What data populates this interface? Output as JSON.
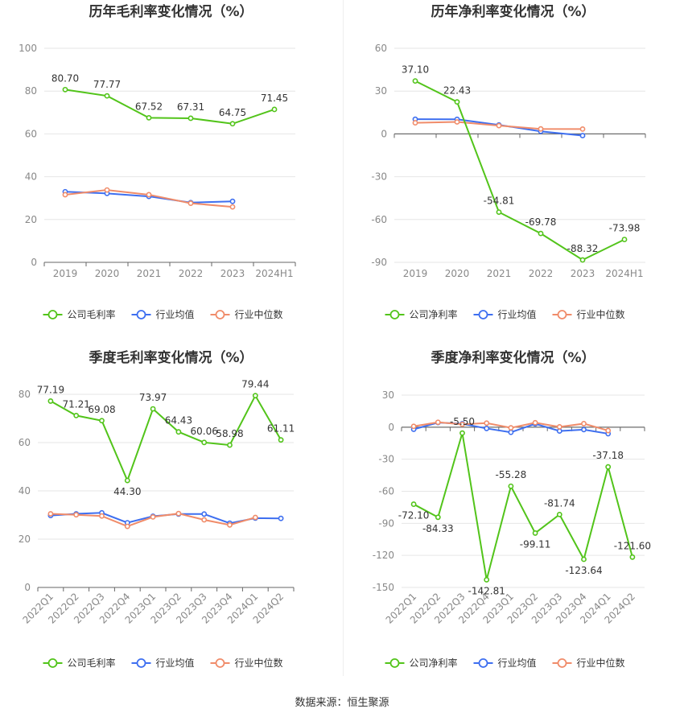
{
  "source_text": "数据来源：恒生聚源",
  "colors": {
    "company": "#52c41a",
    "industry_avg": "#3e6ff0",
    "industry_median": "#f08c6a"
  },
  "chart_data": [
    {
      "id": "annual_gross",
      "type": "line",
      "title": "历年毛利率变化情况（%）",
      "categories": [
        "2019",
        "2020",
        "2021",
        "2022",
        "2023",
        "2024H1"
      ],
      "ylim": [
        0,
        100
      ],
      "yticks": [
        0,
        20,
        40,
        60,
        80,
        100
      ],
      "xrotate": false,
      "series": [
        {
          "name": "公司毛利率",
          "key": "company",
          "values": [
            80.7,
            77.77,
            67.52,
            67.31,
            64.75,
            71.45
          ],
          "labels": [
            "80.70",
            "77.77",
            "67.52",
            "67.31",
            "64.75",
            "71.45"
          ]
        },
        {
          "name": "行业均值",
          "key": "industry_avg",
          "values": [
            33.0,
            32.2,
            30.8,
            27.9,
            28.5,
            null
          ]
        },
        {
          "name": "行业中位数",
          "key": "industry_median",
          "values": [
            31.6,
            33.8,
            31.6,
            27.6,
            25.9,
            null
          ]
        }
      ]
    },
    {
      "id": "annual_net",
      "type": "line",
      "title": "历年净利率变化情况（%）",
      "categories": [
        "2019",
        "2020",
        "2021",
        "2022",
        "2023",
        "2024H1"
      ],
      "ylim": [
        -90,
        60
      ],
      "yticks": [
        -90,
        -60,
        -30,
        0,
        30,
        60
      ],
      "xrotate": false,
      "series": [
        {
          "name": "公司净利率",
          "key": "company",
          "values": [
            37.1,
            22.43,
            -54.81,
            -69.78,
            -88.32,
            -73.98
          ],
          "labels": [
            "37.10",
            "22.43",
            "-54.81",
            "-69.78",
            "-88.32",
            "-73.98"
          ]
        },
        {
          "name": "行业均值",
          "key": "industry_avg",
          "values": [
            10.3,
            10.2,
            6.3,
            1.8,
            -1.2,
            null
          ]
        },
        {
          "name": "行业中位数",
          "key": "industry_median",
          "values": [
            7.8,
            8.4,
            5.8,
            3.5,
            3.4,
            null
          ]
        }
      ]
    },
    {
      "id": "quarterly_gross",
      "type": "line",
      "title": "季度毛利率变化情况（%）",
      "categories": [
        "2022Q1",
        "2022Q2",
        "2022Q3",
        "2022Q4",
        "2023Q1",
        "2023Q2",
        "2023Q3",
        "2023Q4",
        "2024Q1",
        "2024Q2"
      ],
      "ylim": [
        0,
        80
      ],
      "yticks": [
        0,
        20,
        40,
        60,
        80
      ],
      "xrotate": true,
      "series": [
        {
          "name": "公司毛利率",
          "key": "company",
          "values": [
            77.19,
            71.21,
            69.08,
            44.3,
            73.97,
            64.43,
            60.06,
            58.98,
            79.44,
            61.11
          ],
          "labels": [
            "77.19",
            "71.21",
            "69.08",
            "44.30",
            "73.97",
            "64.43",
            "60.06",
            "58.98",
            "79.44",
            "61.11"
          ]
        },
        {
          "name": "行业均值",
          "key": "industry_avg",
          "values": [
            29.8,
            30.5,
            30.9,
            26.8,
            29.5,
            30.4,
            30.4,
            26.6,
            28.7,
            28.6
          ]
        },
        {
          "name": "行业中位数",
          "key": "industry_median",
          "values": [
            30.5,
            30.1,
            29.6,
            25.3,
            29.2,
            30.6,
            28.0,
            25.9,
            29.0,
            null
          ]
        }
      ]
    },
    {
      "id": "quarterly_net",
      "type": "line",
      "title": "季度净利率变化情况（%）",
      "categories": [
        "2022Q1",
        "2022Q2",
        "2022Q3",
        "2022Q4",
        "2023Q1",
        "2023Q2",
        "2023Q3",
        "2023Q4",
        "2024Q1",
        "2024Q2"
      ],
      "ylim": [
        -150,
        30
      ],
      "yticks": [
        -150,
        -120,
        -90,
        -60,
        -30,
        0,
        30
      ],
      "xrotate": true,
      "series": [
        {
          "name": "公司净利率",
          "key": "company",
          "values": [
            -72.1,
            -84.33,
            -5.5,
            -142.81,
            -55.28,
            -99.11,
            -81.74,
            -123.64,
            -37.18,
            -121.6
          ],
          "labels": [
            "-72.10",
            "-84.33",
            "-5.50",
            "-142.81",
            "-55.28",
            "-99.11",
            "-81.74",
            "-123.64",
            "-37.18",
            "-121.60"
          ]
        },
        {
          "name": "行业均值",
          "key": "industry_avg",
          "values": [
            -2.0,
            4.3,
            3.2,
            -1.2,
            -4.8,
            3.1,
            -3.6,
            -2.3,
            -6.1,
            null
          ]
        },
        {
          "name": "行业中位数",
          "key": "industry_median",
          "values": [
            0.8,
            4.6,
            2.7,
            3.8,
            -0.6,
            4.2,
            0.3,
            3.3,
            -3.2,
            null
          ]
        }
      ]
    }
  ]
}
